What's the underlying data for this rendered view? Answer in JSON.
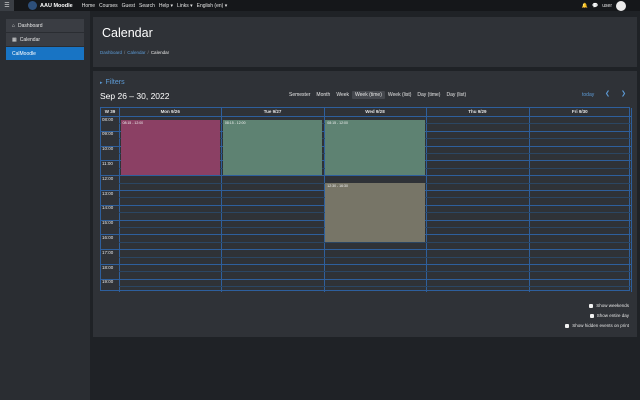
{
  "topbar": {
    "brand": "AAU Moodle",
    "nav": [
      "Home",
      "Courses",
      "Guest",
      "Search",
      "Help",
      "Links",
      "English (en)"
    ],
    "nav_dropdown": [
      false,
      false,
      false,
      false,
      true,
      true,
      true
    ],
    "user_label": "user",
    "menu_icon": "hamburger-icon",
    "bell_icon": "bell-icon",
    "chat_icon": "chat-icon"
  },
  "sidebar": {
    "items": [
      {
        "label": "Dashboard",
        "icon": "home-icon",
        "active": false
      },
      {
        "label": "Calendar",
        "icon": "calendar-icon",
        "active": false
      },
      {
        "label": "CalMoodle",
        "icon": "",
        "active": true
      }
    ]
  },
  "header": {
    "title": "Calendar",
    "breadcrumb": [
      "Dashboard",
      "Calendar",
      "Calendar"
    ]
  },
  "calendar": {
    "filters_label": "Filters",
    "range_title": "Sep 26 – 30, 2022",
    "views": [
      "Semester",
      "Month",
      "Week",
      "Week (time)",
      "Week (list)",
      "Day (time)",
      "Day (list)"
    ],
    "active_view": "Week (time)",
    "today_label": "today",
    "week_label": "W 39",
    "days": [
      "Mon 9/26",
      "Tue 9/27",
      "Wed 9/28",
      "Thu 9/29",
      "Fri 9/30"
    ],
    "hours": [
      "08:00",
      "09:00",
      "10:00",
      "11:00",
      "12:00",
      "13:00",
      "14:00",
      "15:00",
      "16:00",
      "17:00",
      "18:00",
      "19:00"
    ],
    "events": [
      {
        "day": 0,
        "start": 8.25,
        "end": 12.0,
        "label": "08:15 - 12:00",
        "color": "#8b4064"
      },
      {
        "day": 1,
        "start": 8.25,
        "end": 12.0,
        "label": "08:15 - 12:00",
        "color": "#5e8272"
      },
      {
        "day": 2,
        "start": 8.25,
        "end": 12.0,
        "label": "08:15 - 12:00",
        "color": "#5e8272"
      },
      {
        "day": 2,
        "start": 12.5,
        "end": 16.5,
        "label": "12:30 - 16:30",
        "color": "#777567"
      }
    ]
  },
  "options": [
    "Show weekends",
    "Show entire day",
    "Show hidden events on print"
  ]
}
